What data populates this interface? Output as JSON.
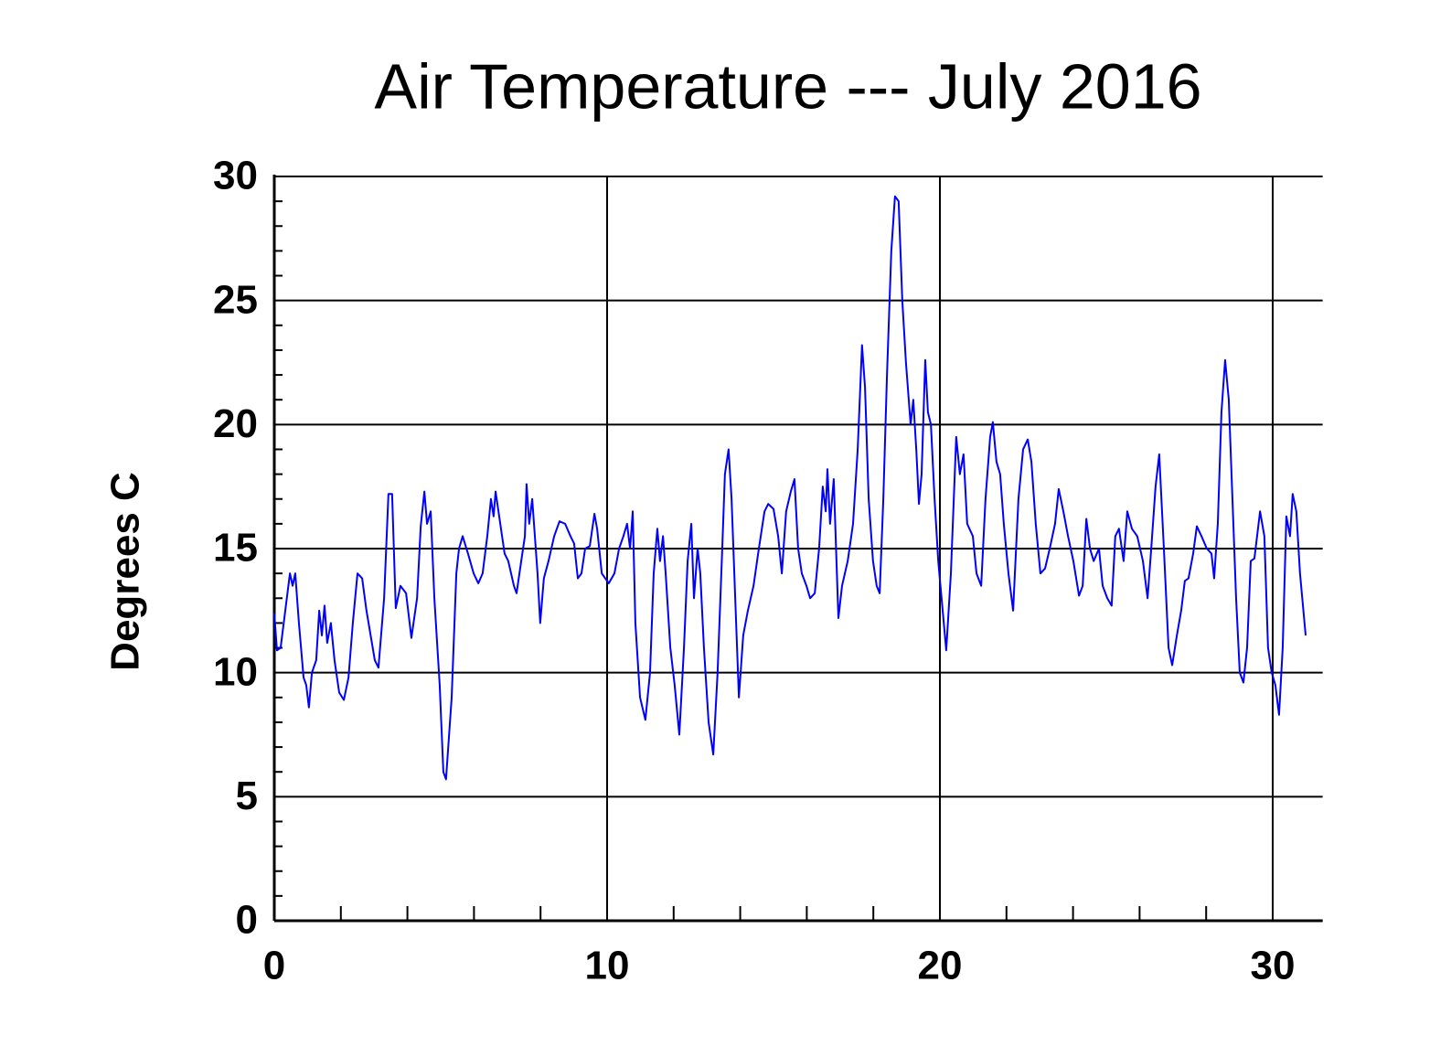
{
  "chart_data": {
    "type": "line",
    "title": "Air Temperature --- July 2016",
    "ylabel": "Degrees C",
    "xlim": [
      0,
      31.5
    ],
    "ylim": [
      0,
      30
    ],
    "xticks": [
      0,
      10,
      20,
      30
    ],
    "yticks": [
      0,
      5,
      10,
      15,
      20,
      25,
      30
    ],
    "minor_xticks": [
      2,
      4,
      6,
      8,
      12,
      14,
      16,
      18,
      22,
      24,
      26,
      28
    ],
    "minor_yticks": [
      1,
      2,
      3,
      4,
      6,
      7,
      8,
      9,
      11,
      12,
      13,
      14,
      16,
      17,
      18,
      19,
      21,
      22,
      23,
      24,
      26,
      27,
      28,
      29
    ],
    "grid": true,
    "series": [
      {
        "color": "#0000ff",
        "x": [
          0,
          0.08,
          0.19,
          0.33,
          0.47,
          0.55,
          0.63,
          0.74,
          0.88,
          0.96,
          1.04,
          1.13,
          1.26,
          1.35,
          1.43,
          1.51,
          1.59,
          1.7,
          1.81,
          1.95,
          2.09,
          2.23,
          2.36,
          2.5,
          2.64,
          2.77,
          3.02,
          3.13,
          3.3,
          3.43,
          3.54,
          3.65,
          3.79,
          3.96,
          4.12,
          4.29,
          4.4,
          4.51,
          4.59,
          4.7,
          4.81,
          4.97,
          5.08,
          5.16,
          5.33,
          5.47,
          5.55,
          5.66,
          5.82,
          5.99,
          6.13,
          6.26,
          6.4,
          6.51,
          6.59,
          6.65,
          6.79,
          6.92,
          7.03,
          7.2,
          7.28,
          7.42,
          7.53,
          7.58,
          7.66,
          7.75,
          7.83,
          7.91,
          7.99,
          8.1,
          8.24,
          8.41,
          8.57,
          8.74,
          8.9,
          9.01,
          9.12,
          9.23,
          9.34,
          9.48,
          9.62,
          9.7,
          9.84,
          10.05,
          10.22,
          10.36,
          10.49,
          10.6,
          10.69,
          10.77,
          10.85,
          10.99,
          11.15,
          11.29,
          11.4,
          11.51,
          11.59,
          11.68,
          11.76,
          11.9,
          12.03,
          12.17,
          12.31,
          12.42,
          12.53,
          12.61,
          12.72,
          12.8,
          12.91,
          13.05,
          13.19,
          13.32,
          13.46,
          13.54,
          13.65,
          13.74,
          13.85,
          13.96,
          14.09,
          14.23,
          14.4,
          14.56,
          14.73,
          14.84,
          15.0,
          15.14,
          15.25,
          15.38,
          15.52,
          15.63,
          15.74,
          15.85,
          15.99,
          16.1,
          16.24,
          16.37,
          16.48,
          16.57,
          16.62,
          16.7,
          16.81,
          16.95,
          17.06,
          17.23,
          17.39,
          17.53,
          17.66,
          17.75,
          17.86,
          17.99,
          18.1,
          18.19,
          18.3,
          18.41,
          18.54,
          18.65,
          18.76,
          18.87,
          18.98,
          19.12,
          19.2,
          19.29,
          19.37,
          19.45,
          19.56,
          19.64,
          19.73,
          19.84,
          19.95,
          20.05,
          20.19,
          20.33,
          20.49,
          20.6,
          20.71,
          20.82,
          20.99,
          21.1,
          21.24,
          21.37,
          21.51,
          21.59,
          21.7,
          21.81,
          21.92,
          22.06,
          22.2,
          22.36,
          22.5,
          22.64,
          22.75,
          22.88,
          23.02,
          23.16,
          23.3,
          23.46,
          23.57,
          23.71,
          23.85,
          24.01,
          24.18,
          24.29,
          24.4,
          24.51,
          24.62,
          24.78,
          24.89,
          25.03,
          25.16,
          25.27,
          25.38,
          25.52,
          25.63,
          25.77,
          25.93,
          26.1,
          26.24,
          26.35,
          26.48,
          26.59,
          26.73,
          26.87,
          26.98,
          27.12,
          27.25,
          27.36,
          27.47,
          27.61,
          27.72,
          27.86,
          28.02,
          28.16,
          28.24,
          28.35,
          28.46,
          28.57,
          28.68,
          28.79,
          28.9,
          29.01,
          29.12,
          29.23,
          29.34,
          29.45,
          29.62,
          29.75,
          29.86,
          29.97,
          30.08,
          30.19,
          30.3,
          30.41,
          30.52,
          30.6,
          30.71,
          30.82,
          30.99
        ],
        "values": [
          12.4,
          10.9,
          11.0,
          12.5,
          14.0,
          13.5,
          14.0,
          12.0,
          9.8,
          9.5,
          8.6,
          10.0,
          10.5,
          12.5,
          11.5,
          12.7,
          11.2,
          12.0,
          10.5,
          9.2,
          8.9,
          9.8,
          12.0,
          14.0,
          13.8,
          12.5,
          10.5,
          10.2,
          13.0,
          17.2,
          17.2,
          12.6,
          13.5,
          13.2,
          11.4,
          13.0,
          15.9,
          17.3,
          16.0,
          16.5,
          13.0,
          9.5,
          6.0,
          5.7,
          9.0,
          14.0,
          15.0,
          15.5,
          14.8,
          14.0,
          13.6,
          14.0,
          15.5,
          17.0,
          16.3,
          17.3,
          16.0,
          14.8,
          14.5,
          13.5,
          13.2,
          14.5,
          15.5,
          17.6,
          16.0,
          17.0,
          15.5,
          14.0,
          12.0,
          13.8,
          14.5,
          15.5,
          16.1,
          16.0,
          15.5,
          15.2,
          13.8,
          14.0,
          15.0,
          15.1,
          16.4,
          15.8,
          14.0,
          13.6,
          14.0,
          15.0,
          15.5,
          16.0,
          15.0,
          16.5,
          12.0,
          9.0,
          8.1,
          10.0,
          14.0,
          15.8,
          14.5,
          15.5,
          14.0,
          11.0,
          9.5,
          7.5,
          11.0,
          14.5,
          16.0,
          13.0,
          15.0,
          14.0,
          11.0,
          8.0,
          6.7,
          10.0,
          15.0,
          18.0,
          19.0,
          17.0,
          13.0,
          9.0,
          11.5,
          12.5,
          13.5,
          15.0,
          16.5,
          16.8,
          16.6,
          15.5,
          14.0,
          16.5,
          17.3,
          17.8,
          15.0,
          14.0,
          13.5,
          13.0,
          13.2,
          15.0,
          17.5,
          16.5,
          18.2,
          16.0,
          17.8,
          12.2,
          13.5,
          14.5,
          16.0,
          19.0,
          23.2,
          21.5,
          17.0,
          14.5,
          13.5,
          13.2,
          17.0,
          22.0,
          27.0,
          29.2,
          29.0,
          25.0,
          22.5,
          20.0,
          21.0,
          19.0,
          16.8,
          18.0,
          22.6,
          20.5,
          20.0,
          17.0,
          14.5,
          13.0,
          10.9,
          14.0,
          19.5,
          18.0,
          18.8,
          16.0,
          15.5,
          14.0,
          13.5,
          17.0,
          19.5,
          20.1,
          18.5,
          18.0,
          16.0,
          14.0,
          12.5,
          17.0,
          19.0,
          19.4,
          18.5,
          16.0,
          14.0,
          14.2,
          15.0,
          16.0,
          17.4,
          16.5,
          15.5,
          14.5,
          13.1,
          13.5,
          16.2,
          15.0,
          14.5,
          15.0,
          13.5,
          13.0,
          12.7,
          15.5,
          15.8,
          14.5,
          16.5,
          15.8,
          15.5,
          14.5,
          13.0,
          15.0,
          17.5,
          18.8,
          15.0,
          11.0,
          10.3,
          11.5,
          12.5,
          13.7,
          13.8,
          14.8,
          15.9,
          15.5,
          15.0,
          14.8,
          13.8,
          16.0,
          20.5,
          22.6,
          21.0,
          17.0,
          13.0,
          10.0,
          9.6,
          11.0,
          14.5,
          14.6,
          16.5,
          15.5,
          11.0,
          10.0,
          9.5,
          8.3,
          11.0,
          16.3,
          15.5,
          17.2,
          16.5,
          14.0,
          11.5
        ]
      }
    ]
  }
}
